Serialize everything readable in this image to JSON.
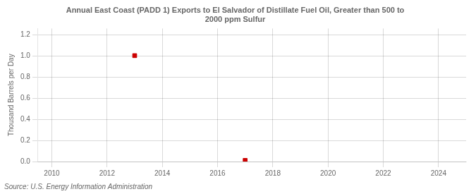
{
  "chart_data": {
    "type": "scatter",
    "title": "Annual East Coast (PADD 1) Exports to El Salvador of Distillate Fuel Oil, Greater than 500 to\n2000 ppm Sulfur",
    "y_label": "Thousand Barrels per Day",
    "source": "Source: U.S. Energy Information Administration",
    "x": [
      2013,
      2017
    ],
    "values": [
      1.003,
      0.011
    ],
    "color": "#cc0000",
    "marker": "square",
    "xlim": [
      2009.5,
      2025.0
    ],
    "ylim": [
      0.0,
      1.26
    ],
    "xticks": [
      2010,
      2012,
      2014,
      2016,
      2018,
      2020,
      2022,
      2024
    ],
    "yticks": [
      {
        "value": 0.0,
        "label": "0.0"
      },
      0.2,
      0.4,
      0.6,
      0.8,
      {
        "value": 1.0,
        "label": "1.0"
      },
      1.2
    ],
    "grid": true
  }
}
